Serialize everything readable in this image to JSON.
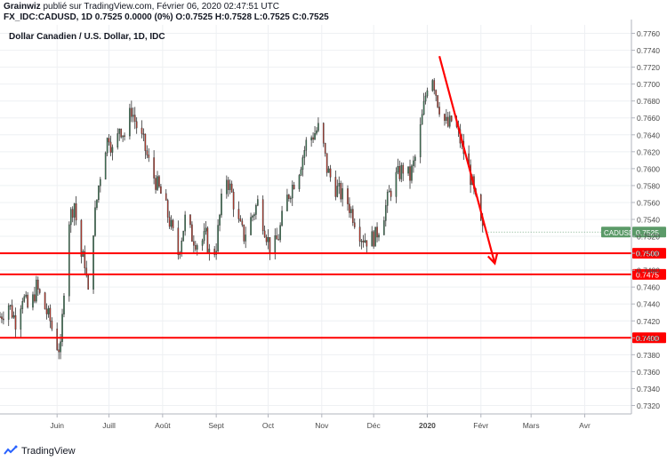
{
  "header": {
    "author": "Grainwiz",
    "published_text": "publié sur TradingView.com, Février 06, 2020 02:47:51 UTC",
    "symbol_line": "FX_IDC:CADUSD, 1D 0.7525 0.0000 (0%) O:0.7525 H:0.7528 L:0.7525 C:0.7525"
  },
  "footer": {
    "brand": "TradingView",
    "logo_icon": "tradingview-logo-icon"
  },
  "colors": {
    "up": "#26a69a",
    "down": "#ef5350",
    "candle_up": "#3b7d57",
    "candle_down": "#c0392b",
    "annotation": "#ff0000",
    "price_label": "#5b9a68",
    "grid": "#eef0f3",
    "axis_text": "#4a4a4a"
  },
  "chart_data": {
    "type": "candlestick",
    "title": "Dollar Canadien / U.S. Dollar, 1D, IDC",
    "y_ticks": [
      "0.7320",
      "0.7340",
      "0.7360",
      "0.7380",
      "0.7400",
      "0.7420",
      "0.7440",
      "0.7460",
      "0.7480",
      "0.7500",
      "0.7520",
      "0.7540",
      "0.7560",
      "0.7580",
      "0.7600",
      "0.7620",
      "0.7640",
      "0.7660",
      "0.7680",
      "0.7700",
      "0.7720",
      "0.7740",
      "0.7760"
    ],
    "ylim": [
      0.731,
      0.777
    ],
    "x_ticks": [
      {
        "label": "Juin",
        "day": 0,
        "bold": false
      },
      {
        "label": "Juill",
        "day": 30,
        "bold": false
      },
      {
        "label": "Août",
        "day": 61,
        "bold": false
      },
      {
        "label": "Sept",
        "day": 92,
        "bold": false
      },
      {
        "label": "Oct",
        "day": 122,
        "bold": false
      },
      {
        "label": "Nov",
        "day": 153,
        "bold": false
      },
      {
        "label": "Déc",
        "day": 183,
        "bold": false
      },
      {
        "label": "2020",
        "day": 214,
        "bold": true
      },
      {
        "label": "Févr",
        "day": 245,
        "bold": false
      },
      {
        "label": "Mars",
        "day": 274,
        "bold": false
      },
      {
        "label": "Avr",
        "day": 305,
        "bold": false
      }
    ],
    "x_range_days": [
      -33,
      332
    ],
    "horizontal_lines": [
      {
        "price": 0.75,
        "label": "0.7500"
      },
      {
        "price": 0.7475,
        "label": "0.7475"
      },
      {
        "price": 0.74,
        "label": "0.7400"
      }
    ],
    "current_price": {
      "symbol": "CADUSD",
      "price": 0.7525,
      "label": "0.7525"
    },
    "arrow": {
      "from": {
        "day": 221,
        "price": 0.7733
      },
      "to": {
        "day": 253,
        "price": 0.7488
      }
    },
    "price_path": [
      {
        "day": -33,
        "price": 0.7425
      },
      {
        "day": -28,
        "price": 0.744
      },
      {
        "day": -24,
        "price": 0.742
      },
      {
        "day": -20,
        "price": 0.745
      },
      {
        "day": -16,
        "price": 0.743
      },
      {
        "day": -12,
        "price": 0.746
      },
      {
        "day": -8,
        "price": 0.744
      },
      {
        "day": -4,
        "price": 0.742
      },
      {
        "day": -1,
        "price": 0.7395
      },
      {
        "day": 2,
        "price": 0.7385
      },
      {
        "day": 4,
        "price": 0.746
      },
      {
        "day": 7,
        "price": 0.754
      },
      {
        "day": 10,
        "price": 0.756
      },
      {
        "day": 13,
        "price": 0.75
      },
      {
        "day": 16,
        "price": 0.749
      },
      {
        "day": 18,
        "price": 0.745
      },
      {
        "day": 21,
        "price": 0.753
      },
      {
        "day": 24,
        "price": 0.758
      },
      {
        "day": 27,
        "price": 0.762
      },
      {
        "day": 30,
        "price": 0.764
      },
      {
        "day": 33,
        "price": 0.761
      },
      {
        "day": 36,
        "price": 0.765
      },
      {
        "day": 39,
        "price": 0.764
      },
      {
        "day": 43,
        "price": 0.767
      },
      {
        "day": 46,
        "price": 0.765
      },
      {
        "day": 50,
        "price": 0.763
      },
      {
        "day": 54,
        "price": 0.76
      },
      {
        "day": 58,
        "price": 0.758
      },
      {
        "day": 62,
        "price": 0.756
      },
      {
        "day": 66,
        "price": 0.753
      },
      {
        "day": 70,
        "price": 0.75
      },
      {
        "day": 74,
        "price": 0.754
      },
      {
        "day": 78,
        "price": 0.752
      },
      {
        "day": 82,
        "price": 0.751
      },
      {
        "day": 86,
        "price": 0.752
      },
      {
        "day": 89,
        "price": 0.749
      },
      {
        "day": 92,
        "price": 0.751
      },
      {
        "day": 95,
        "price": 0.756
      },
      {
        "day": 98,
        "price": 0.759
      },
      {
        "day": 101,
        "price": 0.757
      },
      {
        "day": 104,
        "price": 0.754
      },
      {
        "day": 108,
        "price": 0.752
      },
      {
        "day": 112,
        "price": 0.754
      },
      {
        "day": 116,
        "price": 0.756
      },
      {
        "day": 120,
        "price": 0.753
      },
      {
        "day": 124,
        "price": 0.75
      },
      {
        "day": 128,
        "price": 0.752
      },
      {
        "day": 132,
        "price": 0.756
      },
      {
        "day": 136,
        "price": 0.758
      },
      {
        "day": 140,
        "price": 0.76
      },
      {
        "day": 144,
        "price": 0.763
      },
      {
        "day": 148,
        "price": 0.764
      },
      {
        "day": 152,
        "price": 0.765
      },
      {
        "day": 156,
        "price": 0.76
      },
      {
        "day": 160,
        "price": 0.758
      },
      {
        "day": 164,
        "price": 0.757
      },
      {
        "day": 168,
        "price": 0.756
      },
      {
        "day": 172,
        "price": 0.754
      },
      {
        "day": 176,
        "price": 0.752
      },
      {
        "day": 180,
        "price": 0.7515
      },
      {
        "day": 184,
        "price": 0.752
      },
      {
        "day": 188,
        "price": 0.754
      },
      {
        "day": 192,
        "price": 0.757
      },
      {
        "day": 196,
        "price": 0.759
      },
      {
        "day": 200,
        "price": 0.76
      },
      {
        "day": 204,
        "price": 0.759
      },
      {
        "day": 208,
        "price": 0.762
      },
      {
        "day": 211,
        "price": 0.766
      },
      {
        "day": 214,
        "price": 0.77
      },
      {
        "day": 217,
        "price": 0.771
      },
      {
        "day": 220,
        "price": 0.768
      },
      {
        "day": 223,
        "price": 0.766
      },
      {
        "day": 226,
        "price": 0.765
      },
      {
        "day": 229,
        "price": 0.766
      },
      {
        "day": 232,
        "price": 0.764
      },
      {
        "day": 235,
        "price": 0.762
      },
      {
        "day": 238,
        "price": 0.76
      },
      {
        "day": 241,
        "price": 0.757
      },
      {
        "day": 244,
        "price": 0.754
      },
      {
        "day": 246,
        "price": 0.7525
      }
    ]
  }
}
